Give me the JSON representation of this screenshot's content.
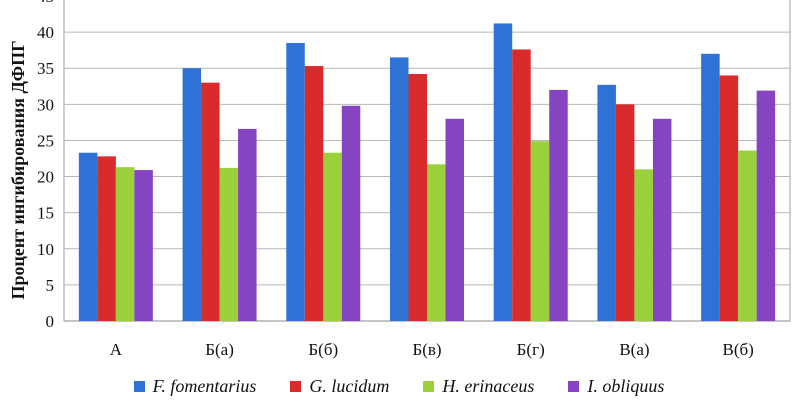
{
  "chart_data": {
    "type": "bar",
    "title": "",
    "xlabel": "",
    "ylabel": "Процент ингибирования ДФПГ",
    "ylim": [
      0,
      45
    ],
    "ytick_step": 5,
    "grid": true,
    "legend_position": "bottom",
    "categories": [
      "А",
      "Б(а)",
      "Б(б)",
      "Б(в)",
      "Б(г)",
      "В(а)",
      "В(б)"
    ],
    "series": [
      {
        "name": "F. fomentarius",
        "color": "#2f72d6",
        "values": [
          23.3,
          35.0,
          38.5,
          36.5,
          41.2,
          32.7,
          37.0
        ]
      },
      {
        "name": "G. lucidum",
        "color": "#d92b2b",
        "values": [
          22.8,
          33.0,
          35.3,
          34.2,
          37.6,
          30.0,
          34.0
        ]
      },
      {
        "name": "H. erinaceus",
        "color": "#9ad13a",
        "values": [
          21.3,
          21.2,
          23.3,
          21.7,
          24.9,
          21.0,
          23.6
        ]
      },
      {
        "name": "I. obliquus",
        "color": "#8545c2",
        "values": [
          20.9,
          26.6,
          29.8,
          28.0,
          32.0,
          28.0,
          31.9
        ]
      }
    ]
  }
}
